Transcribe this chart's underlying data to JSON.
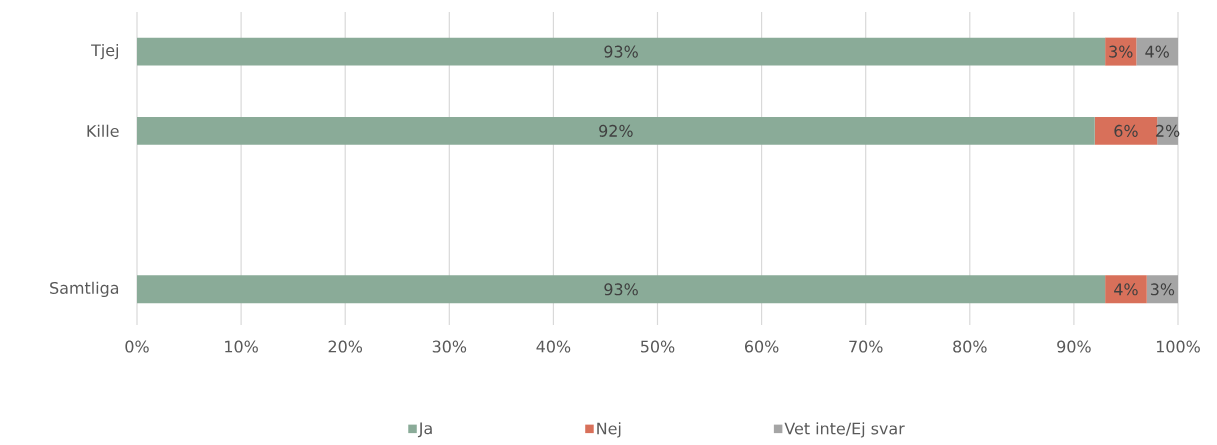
{
  "chart_data": {
    "type": "bar",
    "orientation": "horizontal",
    "stacked": true,
    "categories": [
      "Tjej",
      "Kille",
      null,
      "Samtliga"
    ],
    "series": [
      {
        "name": "Ja",
        "color": "#8aab98",
        "values": [
          93,
          92,
          null,
          93
        ],
        "value_labels": [
          "93%",
          "92%",
          null,
          "93%"
        ]
      },
      {
        "name": "Nej",
        "color": "#d8705a",
        "values": [
          3,
          6,
          null,
          4
        ],
        "value_labels": [
          "3%",
          "6%",
          null,
          "4%"
        ]
      },
      {
        "name": "Vet inte/Ej svar",
        "color": "#a5a5a5",
        "values": [
          4,
          2,
          null,
          3
        ],
        "value_labels": [
          "4%",
          "2%",
          null,
          "3%"
        ]
      }
    ],
    "xlim": [
      0,
      100
    ],
    "xticks": [
      {
        "value": 0,
        "label": "0%"
      },
      {
        "value": 10,
        "label": "10%"
      },
      {
        "value": 20,
        "label": "20%"
      },
      {
        "value": 30,
        "label": "30%"
      },
      {
        "value": 40,
        "label": "40%"
      },
      {
        "value": 50,
        "label": "50%"
      },
      {
        "value": 60,
        "label": "60%"
      },
      {
        "value": 70,
        "label": "70%"
      },
      {
        "value": 80,
        "label": "80%"
      },
      {
        "value": 90,
        "label": "90%"
      },
      {
        "value": 100,
        "label": "100%"
      }
    ],
    "grid": "x",
    "legend": "bottom"
  }
}
